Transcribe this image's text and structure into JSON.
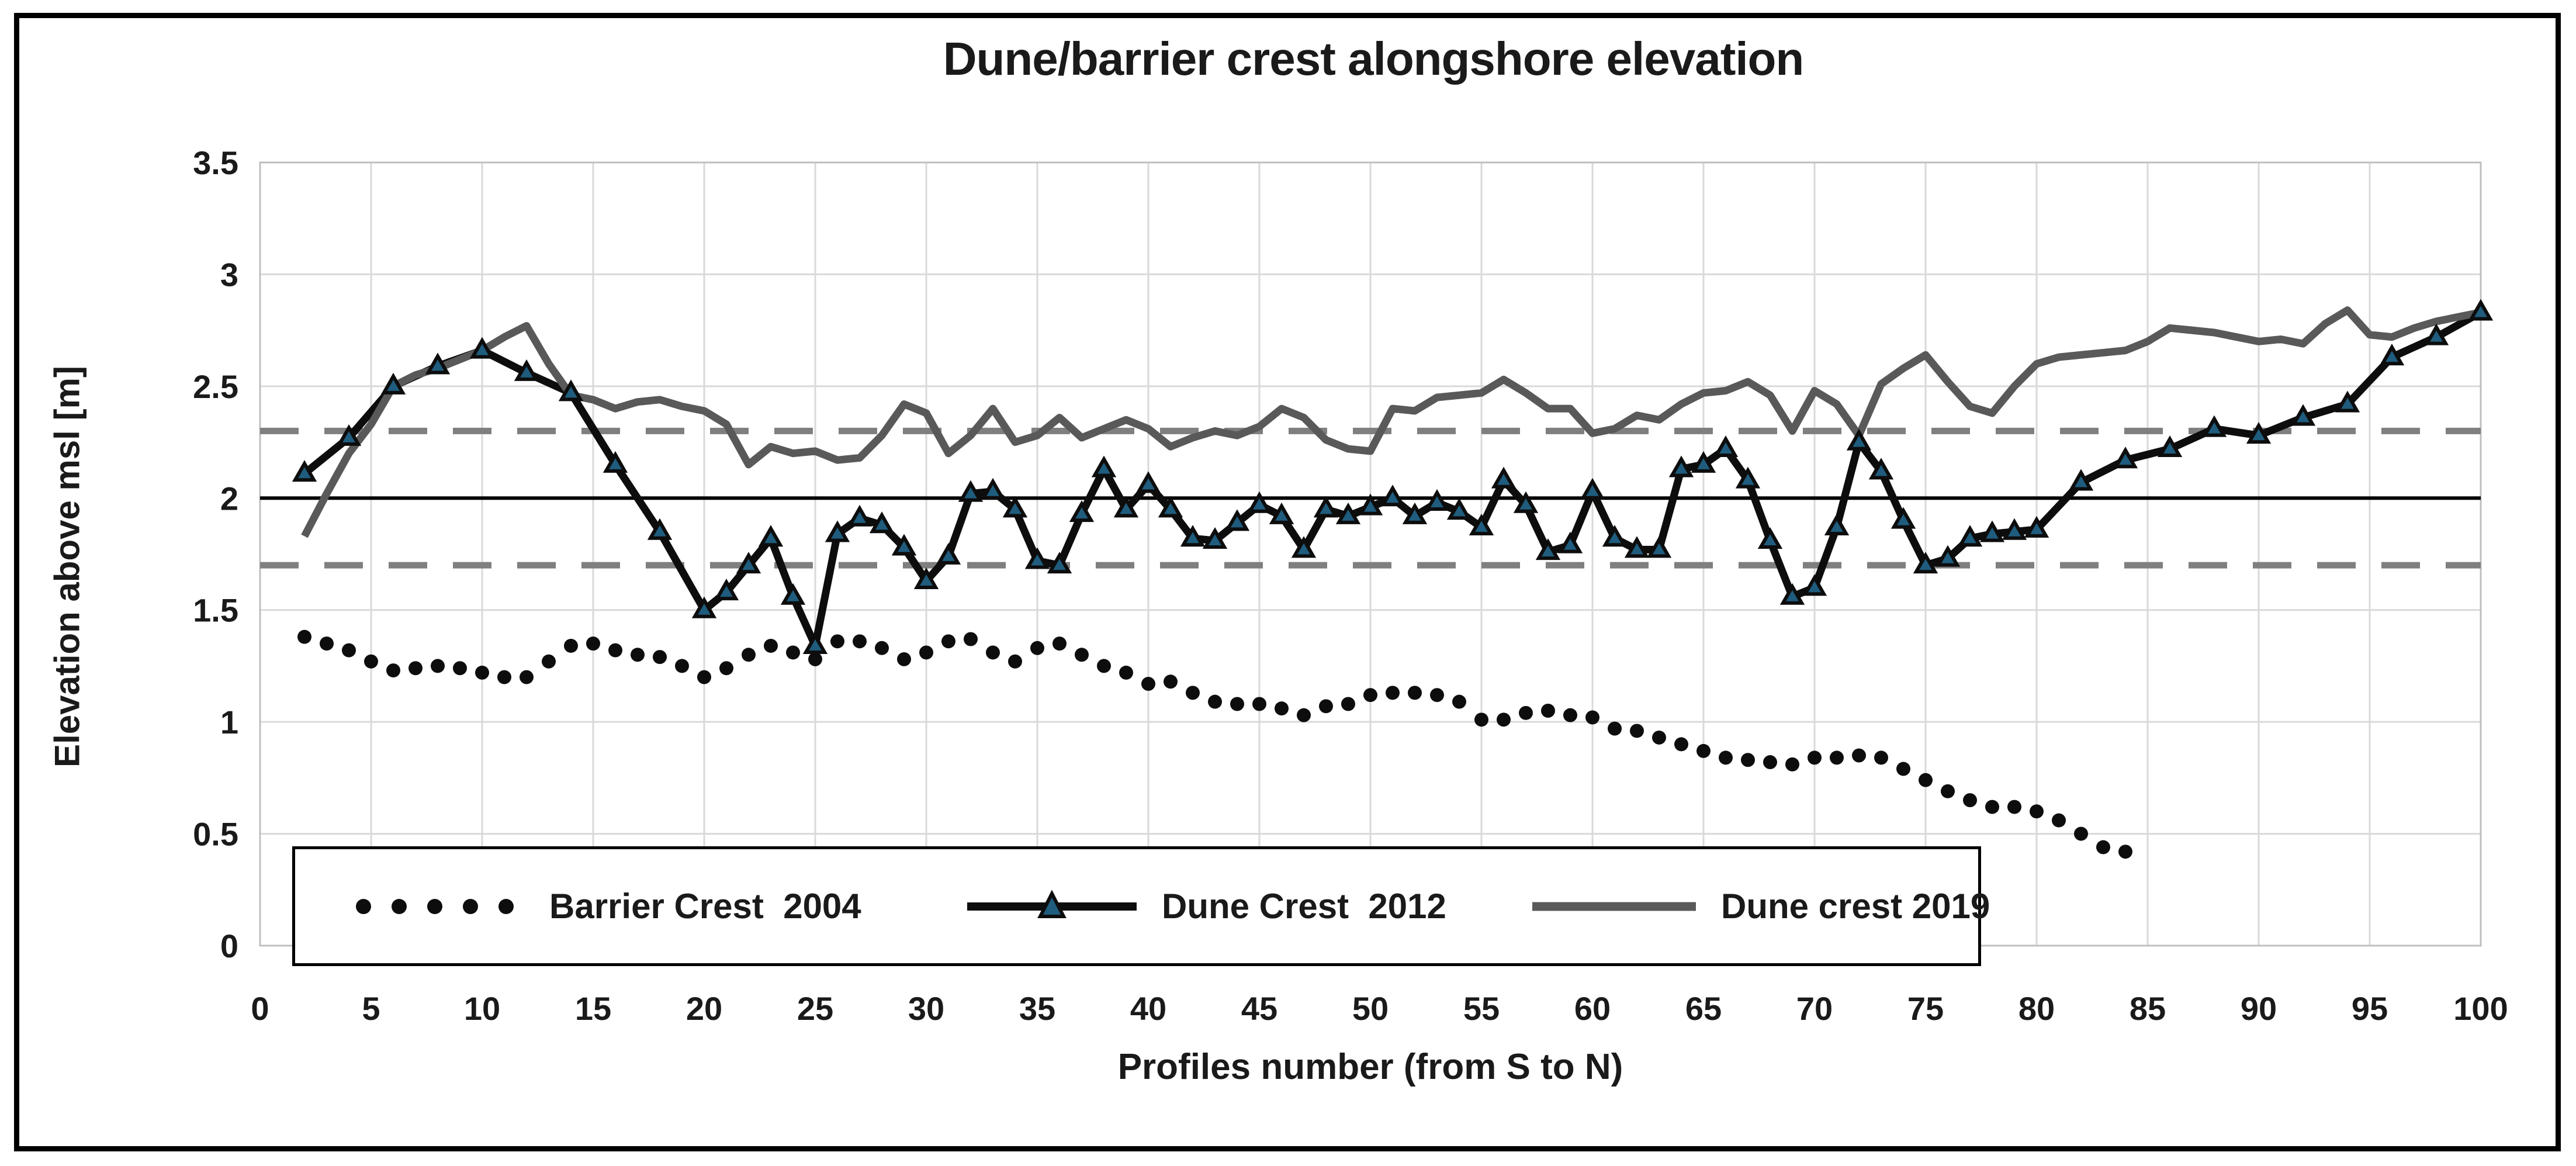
{
  "chart_data": {
    "type": "line",
    "title": "Dune/barrier crest alongshore elevation",
    "xlabel": "Profiles number (from S to N)",
    "ylabel": "Elevation above msl [m]",
    "xlim": [
      0,
      100
    ],
    "ylim": [
      0,
      3.5
    ],
    "x_ticks": [
      0,
      5,
      10,
      15,
      20,
      25,
      30,
      35,
      40,
      45,
      50,
      55,
      60,
      65,
      70,
      75,
      80,
      85,
      90,
      95,
      100
    ],
    "y_ticks": [
      0,
      0.5,
      1,
      1.5,
      2,
      2.5,
      3,
      3.5
    ],
    "grid": true,
    "legend_position": "inside-bottom-left",
    "grid_color": "#d9d9d9",
    "plot_border_color": "#bfbfbf",
    "reference_lines": [
      {
        "value": 2.0,
        "style": "solid",
        "color": "#000000"
      },
      {
        "value": 2.3,
        "style": "dashed",
        "color": "#7f7f7f"
      },
      {
        "value": 1.7,
        "style": "dashed",
        "color": "#7f7f7f"
      }
    ],
    "series": [
      {
        "name": "Barrier Crest  2004",
        "style": "dotted",
        "color": "#0d0d0d",
        "points": [
          [
            2,
            1.38
          ],
          [
            3,
            1.35
          ],
          [
            4,
            1.32
          ],
          [
            5,
            1.27
          ],
          [
            6,
            1.23
          ],
          [
            7,
            1.24
          ],
          [
            8,
            1.25
          ],
          [
            9,
            1.24
          ],
          [
            10,
            1.22
          ],
          [
            11,
            1.2
          ],
          [
            12,
            1.2
          ],
          [
            13,
            1.27
          ],
          [
            14,
            1.34
          ],
          [
            15,
            1.35
          ],
          [
            16,
            1.32
          ],
          [
            17,
            1.3
          ],
          [
            18,
            1.29
          ],
          [
            19,
            1.25
          ],
          [
            20,
            1.2
          ],
          [
            21,
            1.24
          ],
          [
            22,
            1.3
          ],
          [
            23,
            1.34
          ],
          [
            24,
            1.31
          ],
          [
            25,
            1.28
          ],
          [
            26,
            1.36
          ],
          [
            27,
            1.36
          ],
          [
            28,
            1.33
          ],
          [
            29,
            1.28
          ],
          [
            30,
            1.31
          ],
          [
            31,
            1.36
          ],
          [
            32,
            1.37
          ],
          [
            33,
            1.31
          ],
          [
            34,
            1.27
          ],
          [
            35,
            1.33
          ],
          [
            36,
            1.35
          ],
          [
            37,
            1.3
          ],
          [
            38,
            1.25
          ],
          [
            39,
            1.22
          ],
          [
            40,
            1.17
          ],
          [
            41,
            1.18
          ],
          [
            42,
            1.13
          ],
          [
            43,
            1.09
          ],
          [
            44,
            1.08
          ],
          [
            45,
            1.08
          ],
          [
            46,
            1.06
          ],
          [
            47,
            1.03
          ],
          [
            48,
            1.07
          ],
          [
            49,
            1.08
          ],
          [
            50,
            1.12
          ],
          [
            51,
            1.13
          ],
          [
            52,
            1.13
          ],
          [
            53,
            1.12
          ],
          [
            54,
            1.09
          ],
          [
            55,
            1.01
          ],
          [
            56,
            1.01
          ],
          [
            57,
            1.04
          ],
          [
            58,
            1.05
          ],
          [
            59,
            1.03
          ],
          [
            60,
            1.02
          ],
          [
            61,
            0.97
          ],
          [
            62,
            0.96
          ],
          [
            63,
            0.93
          ],
          [
            64,
            0.9
          ],
          [
            65,
            0.87
          ],
          [
            66,
            0.84
          ],
          [
            67,
            0.83
          ],
          [
            68,
            0.82
          ],
          [
            69,
            0.81
          ],
          [
            70,
            0.84
          ],
          [
            71,
            0.84
          ],
          [
            72,
            0.85
          ],
          [
            73,
            0.84
          ],
          [
            74,
            0.79
          ],
          [
            75,
            0.74
          ],
          [
            76,
            0.69
          ],
          [
            77,
            0.65
          ],
          [
            78,
            0.62
          ],
          [
            79,
            0.62
          ],
          [
            80,
            0.6
          ],
          [
            81,
            0.56
          ],
          [
            82,
            0.5
          ],
          [
            83,
            0.44
          ],
          [
            84,
            0.42
          ]
        ]
      },
      {
        "name": "Dune Crest  2012",
        "style": "line",
        "marker": "triangle",
        "color": "#0d0d0d",
        "marker_fill": "#1f5c7d",
        "points": [
          [
            2,
            2.11
          ],
          [
            4,
            2.27
          ],
          [
            6,
            2.5
          ],
          [
            8,
            2.59
          ],
          [
            10,
            2.66
          ],
          [
            12,
            2.56
          ],
          [
            14,
            2.47
          ],
          [
            16,
            2.15
          ],
          [
            18,
            1.85
          ],
          [
            20,
            1.5
          ],
          [
            21,
            1.58
          ],
          [
            22,
            1.7
          ],
          [
            23,
            1.82
          ],
          [
            24,
            1.56
          ],
          [
            25,
            1.34
          ],
          [
            26,
            1.84
          ],
          [
            27,
            1.91
          ],
          [
            28,
            1.88
          ],
          [
            29,
            1.78
          ],
          [
            30,
            1.63
          ],
          [
            31,
            1.74
          ],
          [
            32,
            2.02
          ],
          [
            33,
            2.03
          ],
          [
            34,
            1.95
          ],
          [
            35,
            1.72
          ],
          [
            36,
            1.7
          ],
          [
            37,
            1.93
          ],
          [
            38,
            2.13
          ],
          [
            39,
            1.95
          ],
          [
            40,
            2.06
          ],
          [
            41,
            1.95
          ],
          [
            42,
            1.82
          ],
          [
            43,
            1.81
          ],
          [
            44,
            1.89
          ],
          [
            45,
            1.97
          ],
          [
            46,
            1.92
          ],
          [
            47,
            1.77
          ],
          [
            48,
            1.95
          ],
          [
            49,
            1.92
          ],
          [
            50,
            1.96
          ],
          [
            51,
            2.0
          ],
          [
            52,
            1.92
          ],
          [
            53,
            1.98
          ],
          [
            54,
            1.94
          ],
          [
            55,
            1.87
          ],
          [
            56,
            2.08
          ],
          [
            57,
            1.97
          ],
          [
            58,
            1.76
          ],
          [
            59,
            1.79
          ],
          [
            60,
            2.03
          ],
          [
            61,
            1.82
          ],
          [
            62,
            1.77
          ],
          [
            63,
            1.77
          ],
          [
            64,
            2.13
          ],
          [
            65,
            2.15
          ],
          [
            66,
            2.22
          ],
          [
            67,
            2.08
          ],
          [
            68,
            1.81
          ],
          [
            69,
            1.56
          ],
          [
            70,
            1.6
          ],
          [
            71,
            1.87
          ],
          [
            72,
            2.25
          ],
          [
            73,
            2.12
          ],
          [
            74,
            1.9
          ],
          [
            75,
            1.7
          ],
          [
            76,
            1.73
          ],
          [
            77,
            1.82
          ],
          [
            78,
            1.84
          ],
          [
            79,
            1.85
          ],
          [
            80,
            1.86
          ],
          [
            82,
            2.07
          ],
          [
            84,
            2.17
          ],
          [
            86,
            2.22
          ],
          [
            88,
            2.31
          ],
          [
            90,
            2.28
          ],
          [
            92,
            2.36
          ],
          [
            94,
            2.42
          ],
          [
            96,
            2.63
          ],
          [
            98,
            2.72
          ],
          [
            100,
            2.83
          ]
        ]
      },
      {
        "name": "Dune crest 2019",
        "style": "line",
        "color": "#595959",
        "points": [
          [
            2,
            1.83
          ],
          [
            3,
            2.02
          ],
          [
            4,
            2.2
          ],
          [
            5,
            2.33
          ],
          [
            6,
            2.5
          ],
          [
            7,
            2.55
          ],
          [
            8,
            2.58
          ],
          [
            9,
            2.62
          ],
          [
            10,
            2.66
          ],
          [
            11,
            2.72
          ],
          [
            12,
            2.77
          ],
          [
            13,
            2.6
          ],
          [
            14,
            2.46
          ],
          [
            15,
            2.44
          ],
          [
            16,
            2.4
          ],
          [
            17,
            2.43
          ],
          [
            18,
            2.44
          ],
          [
            19,
            2.41
          ],
          [
            20,
            2.39
          ],
          [
            21,
            2.33
          ],
          [
            22,
            2.15
          ],
          [
            23,
            2.23
          ],
          [
            24,
            2.2
          ],
          [
            25,
            2.21
          ],
          [
            26,
            2.17
          ],
          [
            27,
            2.18
          ],
          [
            28,
            2.28
          ],
          [
            29,
            2.42
          ],
          [
            30,
            2.38
          ],
          [
            31,
            2.2
          ],
          [
            32,
            2.28
          ],
          [
            33,
            2.4
          ],
          [
            34,
            2.25
          ],
          [
            35,
            2.28
          ],
          [
            36,
            2.36
          ],
          [
            37,
            2.27
          ],
          [
            38,
            2.31
          ],
          [
            39,
            2.35
          ],
          [
            40,
            2.31
          ],
          [
            41,
            2.23
          ],
          [
            42,
            2.27
          ],
          [
            43,
            2.3
          ],
          [
            44,
            2.28
          ],
          [
            45,
            2.32
          ],
          [
            46,
            2.4
          ],
          [
            47,
            2.36
          ],
          [
            48,
            2.26
          ],
          [
            49,
            2.22
          ],
          [
            50,
            2.21
          ],
          [
            51,
            2.4
          ],
          [
            52,
            2.39
          ],
          [
            53,
            2.45
          ],
          [
            54,
            2.46
          ],
          [
            55,
            2.47
          ],
          [
            56,
            2.53
          ],
          [
            57,
            2.47
          ],
          [
            58,
            2.4
          ],
          [
            59,
            2.4
          ],
          [
            60,
            2.29
          ],
          [
            61,
            2.31
          ],
          [
            62,
            2.37
          ],
          [
            63,
            2.35
          ],
          [
            64,
            2.42
          ],
          [
            65,
            2.47
          ],
          [
            66,
            2.48
          ],
          [
            67,
            2.52
          ],
          [
            68,
            2.46
          ],
          [
            69,
            2.3
          ],
          [
            70,
            2.48
          ],
          [
            71,
            2.42
          ],
          [
            72,
            2.28
          ],
          [
            73,
            2.51
          ],
          [
            74,
            2.58
          ],
          [
            75,
            2.64
          ],
          [
            76,
            2.52
          ],
          [
            77,
            2.41
          ],
          [
            78,
            2.38
          ],
          [
            79,
            2.5
          ],
          [
            80,
            2.6
          ],
          [
            81,
            2.63
          ],
          [
            82,
            2.64
          ],
          [
            83,
            2.65
          ],
          [
            84,
            2.66
          ],
          [
            85,
            2.7
          ],
          [
            86,
            2.76
          ],
          [
            87,
            2.75
          ],
          [
            88,
            2.74
          ],
          [
            89,
            2.72
          ],
          [
            90,
            2.7
          ],
          [
            91,
            2.71
          ],
          [
            92,
            2.69
          ],
          [
            93,
            2.78
          ],
          [
            94,
            2.84
          ],
          [
            95,
            2.73
          ],
          [
            96,
            2.72
          ],
          [
            97,
            2.76
          ],
          [
            98,
            2.79
          ],
          [
            99,
            2.81
          ],
          [
            100,
            2.83
          ]
        ]
      }
    ]
  },
  "legend": {
    "items": [
      {
        "label": "Barrier Crest  2004"
      },
      {
        "label": "Dune Crest  2012"
      },
      {
        "label": "Dune crest 2019"
      }
    ]
  }
}
